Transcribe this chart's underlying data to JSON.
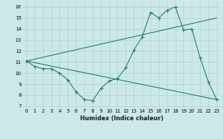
{
  "xlabel": "Humidex (Indice chaleur)",
  "bg_color": "#cce8e8",
  "line_color": "#1a7a6e",
  "grid_color": "#b0d0d0",
  "xlim": [
    -0.5,
    23.5
  ],
  "ylim": [
    6.8,
    16.5
  ],
  "yticks": [
    7,
    8,
    9,
    10,
    11,
    12,
    13,
    14,
    15,
    16
  ],
  "xticks": [
    0,
    1,
    2,
    3,
    4,
    5,
    6,
    7,
    8,
    9,
    10,
    11,
    12,
    13,
    14,
    15,
    16,
    17,
    18,
    19,
    20,
    21,
    22,
    23
  ],
  "line1_x": [
    0,
    1,
    2,
    3,
    4,
    5,
    6,
    7,
    8,
    9,
    10,
    11,
    12,
    13,
    14,
    15,
    16,
    17,
    18,
    19,
    20,
    21,
    22,
    23
  ],
  "line1_y": [
    11.1,
    10.6,
    10.4,
    10.4,
    10.0,
    9.4,
    8.3,
    7.6,
    7.5,
    8.6,
    9.3,
    9.5,
    10.5,
    12.1,
    13.3,
    15.5,
    15.0,
    15.7,
    16.0,
    13.9,
    14.0,
    11.4,
    9.2,
    7.6
  ],
  "line2_x": [
    0,
    23
  ],
  "line2_y": [
    11.1,
    7.6
  ],
  "line3_x": [
    0,
    23
  ],
  "line3_y": [
    11.1,
    15.0
  ]
}
